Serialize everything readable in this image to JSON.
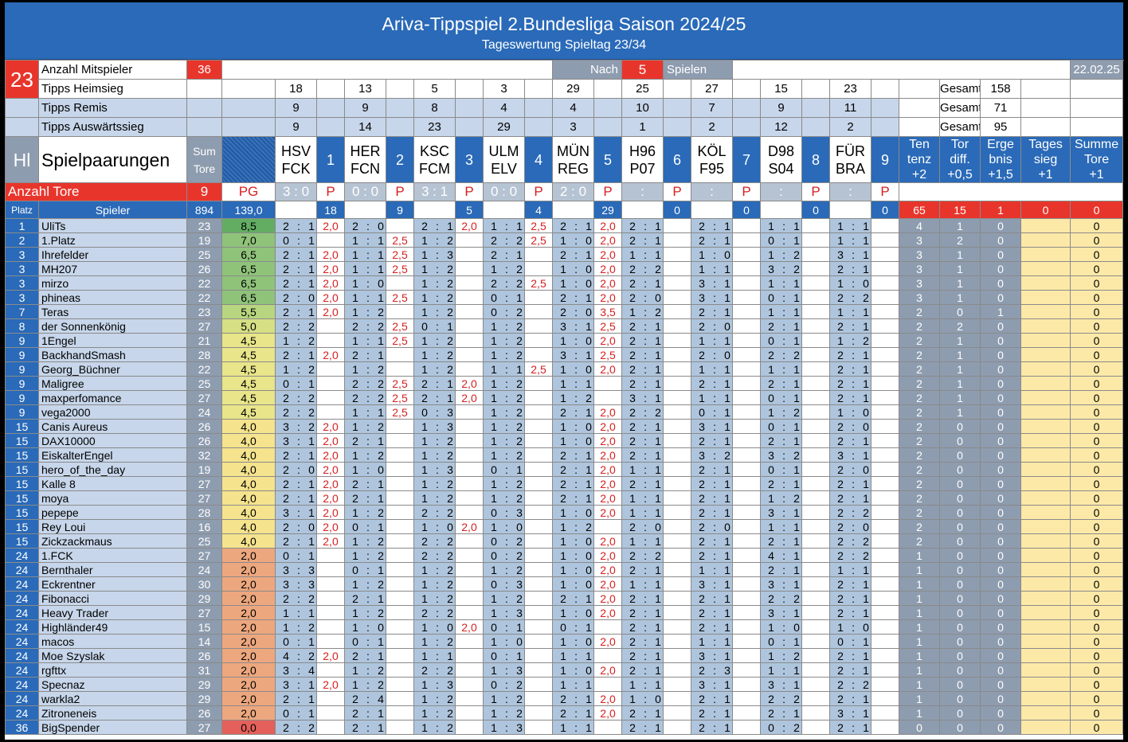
{
  "title": "Ariva-Tippspiel 2.Bundesliga Saison 2024/25",
  "subtitle": "Tageswertung Spieltag 23/34",
  "info": {
    "spieltag": "23",
    "mitspieler_label": "Anzahl Mitspieler",
    "mitspieler": "36",
    "nach": "Nach",
    "nach_n": "5",
    "spielen": "Spielen",
    "date": "22.02.25"
  },
  "tipps": [
    {
      "label": "Tipps Heimsieg",
      "values": [
        "18",
        "13",
        "5",
        "3",
        "29",
        "25",
        "27",
        "15",
        "23"
      ],
      "gesamt_label": "Gesamt",
      "gesamt": "158"
    },
    {
      "label": "Tipps Remis",
      "values": [
        "9",
        "9",
        "8",
        "4",
        "4",
        "10",
        "7",
        "9",
        "11"
      ],
      "gesamt_label": "Gesamt",
      "gesamt": "71"
    },
    {
      "label": "Tipps Auswärtssieg",
      "values": [
        "9",
        "14",
        "23",
        "29",
        "3",
        "1",
        "2",
        "12",
        "2"
      ],
      "gesamt_label": "Gesamt",
      "gesamt": "95"
    }
  ],
  "header": {
    "hl": "Hl",
    "spielpaarungen": "Spielpaarungen",
    "sum_tore": [
      "Sum",
      "Tore"
    ],
    "tendenz": [
      "Ten",
      "tenz",
      "+2"
    ],
    "tordiff": [
      "Tor",
      "diff.",
      "+0,5"
    ],
    "ergebnis": [
      "Erge",
      "bnis",
      "+1,5"
    ],
    "tagessieg": [
      "Tages",
      "sieg",
      "+1"
    ],
    "summe_tore": [
      "Summe",
      "Tore",
      "+1"
    ]
  },
  "matches": [
    {
      "home": "HSV",
      "away": "FCK",
      "nr": "1",
      "result": "3 : 0",
      "tip_heim": "18",
      "pts": "18"
    },
    {
      "home": "HER",
      "away": "FCN",
      "nr": "2",
      "result": "0 : 0",
      "pts": "9"
    },
    {
      "home": "KSC",
      "away": "FCM",
      "nr": "3",
      "result": "3 : 1",
      "pts": "5"
    },
    {
      "home": "ULM",
      "away": "ELV",
      "nr": "4",
      "result": "0 : 0",
      "pts": "4"
    },
    {
      "home": "MÜN",
      "away": "REG",
      "nr": "5",
      "result": "2 : 0",
      "pts": "29"
    },
    {
      "home": "H96",
      "away": "P07",
      "nr": "6",
      "result": ":",
      "pts": "0"
    },
    {
      "home": "KÖL",
      "away": "F95",
      "nr": "7",
      "result": ":",
      "pts": "0"
    },
    {
      "home": "D98",
      "away": "S04",
      "nr": "8",
      "result": ":",
      "pts": "0"
    },
    {
      "home": "FÜR",
      "away": "BRA",
      "nr": "9",
      "result": ":",
      "pts": "0"
    }
  ],
  "anzahl": {
    "label": "Anzahl Tore",
    "value": "9",
    "pg": "PG",
    "p": "P"
  },
  "platz_row": {
    "platz": "Platz",
    "spieler": "Spieler",
    "sum": "894",
    "pg": "139,0",
    "tendenz": "65",
    "tordiff": "15",
    "ergebnis": "1",
    "tagessieg": "0",
    "summe": "0"
  },
  "players": [
    [
      "1",
      "UliTs",
      "23",
      "8,5",
      "2:1",
      "2,0",
      "2:0",
      "",
      "2:1",
      "2,0",
      "1:1",
      "2,5",
      "2:1",
      "2,0",
      "2:1",
      "2:1",
      "1:1",
      "1:1",
      "4",
      "1",
      "0",
      "",
      "0"
    ],
    [
      "2",
      "1.Platz",
      "19",
      "7,0",
      "0:1",
      "",
      "1:1",
      "2,5",
      "1:2",
      "",
      "2:2",
      "2,5",
      "1:0",
      "2,0",
      "2:1",
      "2:1",
      "0:1",
      "1:1",
      "3",
      "2",
      "0",
      "",
      "0"
    ],
    [
      "3",
      "Ihrefelder",
      "25",
      "6,5",
      "2:1",
      "2,0",
      "1:1",
      "2,5",
      "1:3",
      "",
      "2:1",
      "",
      "2:1",
      "2,0",
      "1:1",
      "1:0",
      "1:2",
      "3:1",
      "3",
      "1",
      "0",
      "",
      "0"
    ],
    [
      "3",
      "MH207",
      "26",
      "6,5",
      "2:1",
      "2,0",
      "1:1",
      "2,5",
      "1:2",
      "",
      "1:2",
      "",
      "1:0",
      "2,0",
      "2:2",
      "1:1",
      "3:2",
      "2:1",
      "3",
      "1",
      "0",
      "",
      "0"
    ],
    [
      "3",
      "mirzo",
      "22",
      "6,5",
      "2:1",
      "2,0",
      "1:0",
      "",
      "1:2",
      "",
      "2:2",
      "2,5",
      "1:0",
      "2,0",
      "2:1",
      "3:1",
      "1:1",
      "1:0",
      "3",
      "1",
      "0",
      "",
      "0"
    ],
    [
      "3",
      "phineas",
      "22",
      "6,5",
      "2:0",
      "2,0",
      "1:1",
      "2,5",
      "1:2",
      "",
      "0:1",
      "",
      "2:1",
      "2,0",
      "2:0",
      "3:1",
      "0:1",
      "2:2",
      "3",
      "1",
      "0",
      "",
      "0"
    ],
    [
      "7",
      "Teras",
      "23",
      "5,5",
      "2:1",
      "2,0",
      "1:2",
      "",
      "1:2",
      "",
      "0:2",
      "",
      "2:0",
      "3,5",
      "1:2",
      "2:1",
      "1:1",
      "1:1",
      "2",
      "0",
      "1",
      "",
      "0"
    ],
    [
      "8",
      "der Sonnenkönig",
      "27",
      "5,0",
      "2:2",
      "",
      "2:2",
      "2,5",
      "0:1",
      "",
      "1:2",
      "",
      "3:1",
      "2,5",
      "2:1",
      "2:0",
      "2:1",
      "2:1",
      "2",
      "2",
      "0",
      "",
      "0"
    ],
    [
      "9",
      "1Engel",
      "21",
      "4,5",
      "1:2",
      "",
      "1:1",
      "2,5",
      "1:2",
      "",
      "1:2",
      "",
      "1:0",
      "2,0",
      "2:1",
      "1:1",
      "0:1",
      "1:2",
      "2",
      "1",
      "0",
      "",
      "0"
    ],
    [
      "9",
      "BackhandSmash",
      "28",
      "4,5",
      "2:1",
      "2,0",
      "2:1",
      "",
      "1:2",
      "",
      "1:2",
      "",
      "3:1",
      "2,5",
      "2:1",
      "2:0",
      "2:2",
      "2:1",
      "2",
      "1",
      "0",
      "",
      "0"
    ],
    [
      "9",
      "Georg_Büchner",
      "22",
      "4,5",
      "1:2",
      "",
      "1:2",
      "",
      "1:2",
      "",
      "1:1",
      "2,5",
      "1:0",
      "2,0",
      "2:1",
      "1:1",
      "1:1",
      "2:1",
      "2",
      "1",
      "0",
      "",
      "0"
    ],
    [
      "9",
      "Maligree",
      "25",
      "4,5",
      "0:1",
      "",
      "2:2",
      "2,5",
      "2:1",
      "2,0",
      "1:2",
      "",
      "1:1",
      "",
      "2:1",
      "2:1",
      "2:1",
      "2:1",
      "2",
      "1",
      "0",
      "",
      "0"
    ],
    [
      "9",
      "maxperfomance",
      "27",
      "4,5",
      "2:2",
      "",
      "2:2",
      "2,5",
      "2:1",
      "2,0",
      "1:2",
      "",
      "1:2",
      "",
      "3:1",
      "1:1",
      "0:1",
      "2:1",
      "2",
      "1",
      "0",
      "",
      "0"
    ],
    [
      "9",
      "vega2000",
      "24",
      "4,5",
      "2:2",
      "",
      "1:1",
      "2,5",
      "0:3",
      "",
      "1:2",
      "",
      "2:1",
      "2,0",
      "2:2",
      "0:1",
      "1:2",
      "1:0",
      "2",
      "1",
      "0",
      "",
      "0"
    ],
    [
      "15",
      "Canis Aureus",
      "26",
      "4,0",
      "3:2",
      "2,0",
      "1:2",
      "",
      "1:3",
      "",
      "1:2",
      "",
      "1:0",
      "2,0",
      "2:1",
      "3:1",
      "0:1",
      "2:0",
      "2",
      "0",
      "0",
      "",
      "0"
    ],
    [
      "15",
      "DAX10000",
      "26",
      "4,0",
      "3:1",
      "2,0",
      "2:1",
      "",
      "1:2",
      "",
      "1:2",
      "",
      "1:0",
      "2,0",
      "2:1",
      "2:1",
      "2:1",
      "2:1",
      "2",
      "0",
      "0",
      "",
      "0"
    ],
    [
      "15",
      "EiskalterEngel",
      "32",
      "4,0",
      "2:1",
      "2,0",
      "1:2",
      "",
      "1:2",
      "",
      "1:2",
      "",
      "2:1",
      "2,0",
      "2:1",
      "3:2",
      "3:2",
      "3:1",
      "2",
      "0",
      "0",
      "",
      "0"
    ],
    [
      "15",
      "hero_of_the_day",
      "19",
      "4,0",
      "2:0",
      "2,0",
      "1:0",
      "",
      "1:3",
      "",
      "0:1",
      "",
      "2:1",
      "2,0",
      "1:1",
      "2:1",
      "0:1",
      "2:0",
      "2",
      "0",
      "0",
      "",
      "0"
    ],
    [
      "15",
      "Kalle 8",
      "27",
      "4,0",
      "2:1",
      "2,0",
      "2:1",
      "",
      "1:2",
      "",
      "1:2",
      "",
      "2:1",
      "2,0",
      "2:1",
      "2:1",
      "2:1",
      "2:1",
      "2",
      "0",
      "0",
      "",
      "0"
    ],
    [
      "15",
      "moya",
      "27",
      "4,0",
      "2:1",
      "2,0",
      "2:1",
      "",
      "1:2",
      "",
      "1:2",
      "",
      "2:1",
      "2,0",
      "1:1",
      "2:1",
      "1:2",
      "2:1",
      "2",
      "0",
      "0",
      "",
      "0"
    ],
    [
      "15",
      "pepepe",
      "28",
      "4,0",
      "3:1",
      "2,0",
      "1:2",
      "",
      "2:2",
      "",
      "0:3",
      "",
      "1:0",
      "2,0",
      "1:1",
      "2:1",
      "3:1",
      "2:2",
      "2",
      "0",
      "0",
      "",
      "0"
    ],
    [
      "15",
      "Rey Loui",
      "16",
      "4,0",
      "2:0",
      "2,0",
      "0:1",
      "",
      "1:0",
      "2,0",
      "1:0",
      "",
      "1:2",
      "",
      "2:0",
      "2:0",
      "1:1",
      "2:0",
      "2",
      "0",
      "0",
      "",
      "0"
    ],
    [
      "15",
      "Zickzackmaus",
      "25",
      "4,0",
      "2:1",
      "2,0",
      "1:2",
      "",
      "2:2",
      "",
      "0:2",
      "",
      "1:0",
      "2,0",
      "1:1",
      "2:1",
      "2:1",
      "2:2",
      "2",
      "0",
      "0",
      "",
      "0"
    ],
    [
      "24",
      "1.FCK",
      "27",
      "2,0",
      "0:1",
      "",
      "1:2",
      "",
      "2:2",
      "",
      "0:2",
      "",
      "1:0",
      "2,0",
      "2:2",
      "2:1",
      "4:1",
      "2:2",
      "1",
      "0",
      "0",
      "",
      "0"
    ],
    [
      "24",
      "Bernthaler",
      "24",
      "2,0",
      "3:3",
      "",
      "0:1",
      "",
      "1:2",
      "",
      "1:2",
      "",
      "1:0",
      "2,0",
      "2:1",
      "1:1",
      "2:1",
      "1:1",
      "1",
      "0",
      "0",
      "",
      "0"
    ],
    [
      "24",
      "Eckrentner",
      "30",
      "2,0",
      "3:3",
      "",
      "1:2",
      "",
      "1:2",
      "",
      "0:3",
      "",
      "1:0",
      "2,0",
      "1:1",
      "3:1",
      "3:1",
      "2:1",
      "1",
      "0",
      "0",
      "",
      "0"
    ],
    [
      "24",
      "Fibonacci",
      "29",
      "2,0",
      "2:2",
      "",
      "2:1",
      "",
      "1:2",
      "",
      "1:2",
      "",
      "2:1",
      "2,0",
      "2:1",
      "2:1",
      "2:2",
      "2:1",
      "1",
      "0",
      "0",
      "",
      "0"
    ],
    [
      "24",
      "Heavy Trader",
      "27",
      "2,0",
      "1:1",
      "",
      "1:2",
      "",
      "2:2",
      "",
      "1:3",
      "",
      "1:0",
      "2,0",
      "2:1",
      "2:1",
      "3:1",
      "2:1",
      "1",
      "0",
      "0",
      "",
      "0"
    ],
    [
      "24",
      "Highländer49",
      "15",
      "2,0",
      "1:2",
      "",
      "1:0",
      "",
      "1:0",
      "2,0",
      "0:1",
      "",
      "0:1",
      "",
      "2:1",
      "2:1",
      "1:0",
      "1:0",
      "1",
      "0",
      "0",
      "",
      "0"
    ],
    [
      "24",
      "macos",
      "14",
      "2,0",
      "0:1",
      "",
      "0:1",
      "",
      "1:2",
      "",
      "1:0",
      "",
      "1:0",
      "2,0",
      "2:1",
      "1:1",
      "0:1",
      "0:1",
      "1",
      "0",
      "0",
      "",
      "0"
    ],
    [
      "24",
      "Moe Szyslak",
      "26",
      "2,0",
      "4:2",
      "2,0",
      "2:1",
      "",
      "1:1",
      "",
      "0:1",
      "",
      "1:1",
      "",
      "2:1",
      "3:1",
      "1:2",
      "2:1",
      "1",
      "0",
      "0",
      "",
      "0"
    ],
    [
      "24",
      "rgfttx",
      "31",
      "2,0",
      "3:4",
      "",
      "1:2",
      "",
      "2:2",
      "",
      "1:3",
      "",
      "1:0",
      "2,0",
      "2:1",
      "2:3",
      "1:1",
      "2:1",
      "1",
      "0",
      "0",
      "",
      "0"
    ],
    [
      "24",
      "Specnaz",
      "29",
      "2,0",
      "3:1",
      "2,0",
      "1:2",
      "",
      "1:3",
      "",
      "0:2",
      "",
      "1:1",
      "",
      "1:1",
      "3:1",
      "3:1",
      "2:2",
      "1",
      "0",
      "0",
      "",
      "0"
    ],
    [
      "24",
      "warkla2",
      "29",
      "2,0",
      "2:1",
      "",
      "2:4",
      "",
      "1:2",
      "",
      "1:2",
      "",
      "2:1",
      "2,0",
      "1:0",
      "2:1",
      "2:2",
      "2:1",
      "1",
      "0",
      "0",
      "",
      "0"
    ],
    [
      "24",
      "Zitroneneis",
      "26",
      "2,0",
      "0:1",
      "",
      "2:1",
      "",
      "1:2",
      "",
      "1:2",
      "",
      "2:1",
      "2,0",
      "2:1",
      "2:1",
      "2:1",
      "3:1",
      "1",
      "0",
      "0",
      "",
      "0"
    ],
    [
      "36",
      "BigSpender",
      "27",
      "0,0",
      "2:2",
      "",
      "2:1",
      "",
      "1:2",
      "",
      "1:3",
      "",
      "1:1",
      "",
      "2:1",
      "2:1",
      "0:2",
      "2:1",
      "0",
      "0",
      "0",
      "",
      "0"
    ]
  ],
  "colors": {
    "blue": "#2a6ab8",
    "red": "#e8352c",
    "pg_high": "#6cb56a",
    "pg_mid": "#e8e58a",
    "pg_low": "#e9a07a",
    "pg_zero": "#e4605a"
  }
}
